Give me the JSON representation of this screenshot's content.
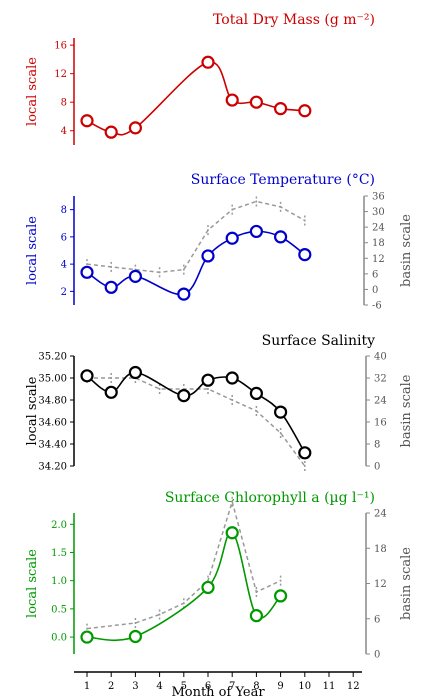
{
  "chart_data": [
    {
      "type": "line",
      "title": "Total Dry Mass (g m⁻²)",
      "ylabel_left": "local scale",
      "color": "#cc0000",
      "ylim_left": [
        2,
        17
      ],
      "yticks_left": [
        "4",
        "8",
        "12",
        "16"
      ],
      "series": [
        {
          "x": [
            1,
            2,
            3,
            6,
            7,
            8,
            9,
            10
          ],
          "values": [
            5.4,
            3.8,
            4.4,
            13.6,
            8.3,
            8.0,
            7.1,
            6.8
          ]
        }
      ]
    },
    {
      "type": "line",
      "title": "Surface Temperature (°C)",
      "ylabel_left": "local scale",
      "ylabel_right": "basin scale",
      "color": "#0000cc",
      "ylim_left": [
        1,
        9
      ],
      "ylim_right": [
        -6,
        36
      ],
      "yticks_left": [
        "2",
        "4",
        "6",
        "8"
      ],
      "yticks_right": [
        "-6",
        "0",
        "6",
        "12",
        "18",
        "24",
        "30",
        "36"
      ],
      "series": [
        {
          "x": [
            1,
            2,
            3,
            5,
            6,
            7,
            8,
            9,
            10
          ],
          "values": [
            3.4,
            2.3,
            3.1,
            1.8,
            4.6,
            5.9,
            6.4,
            6.0,
            4.7
          ]
        }
      ],
      "basin_series": {
        "x": [
          1,
          2,
          3,
          4,
          5,
          6,
          7,
          8,
          9,
          10
        ],
        "values": [
          4.0,
          3.8,
          3.6,
          3.4,
          3.6,
          6.5,
          8.0,
          8.6,
          8.2,
          7.2
        ]
      }
    },
    {
      "type": "line",
      "title": "Surface Salinity",
      "ylabel_left": "local scale",
      "ylabel_right": "basin scale",
      "color": "#000000",
      "ylim_left": [
        34.2,
        35.2
      ],
      "ylim_right": [
        0,
        40
      ],
      "yticks_left": [
        "34.20",
        "34.40",
        "34.60",
        "34.80",
        "35.00",
        "35.20"
      ],
      "yticks_right": [
        "0",
        "8",
        "16",
        "24",
        "32",
        "40"
      ],
      "series": [
        {
          "x": [
            1,
            2,
            3,
            5,
            6,
            7,
            8,
            9,
            10
          ],
          "values": [
            35.02,
            34.87,
            35.05,
            34.84,
            34.98,
            35.0,
            34.86,
            34.69,
            34.32
          ]
        }
      ],
      "basin_series": {
        "x": [
          1,
          2,
          3,
          4,
          5,
          6,
          7,
          8,
          9,
          10
        ],
        "values": [
          35.0,
          35.0,
          35.0,
          34.9,
          34.9,
          34.9,
          34.8,
          34.7,
          34.5,
          34.2
        ]
      }
    },
    {
      "type": "line",
      "title": "Surface Chlorophyll a (µg l⁻¹)",
      "ylabel_left": "local scale",
      "ylabel_right": "basin scale",
      "color": "#009900",
      "ylim_left": [
        -0.3,
        2.2
      ],
      "ylim_right": [
        0,
        24
      ],
      "yticks_left": [
        "0.0",
        "0.5",
        "1.0",
        "1.5",
        "2.0"
      ],
      "yticks_right": [
        "0",
        "6",
        "12",
        "18",
        "24"
      ],
      "series": [
        {
          "x": [
            1,
            3,
            6,
            7,
            8,
            9
          ],
          "values": [
            0.0,
            0.01,
            0.88,
            1.85,
            0.38,
            0.73
          ]
        }
      ],
      "basin_series": {
        "x": [
          1,
          3,
          4,
          5,
          6,
          7,
          8,
          9
        ],
        "values": [
          0.15,
          0.25,
          0.4,
          0.6,
          1.0,
          2.4,
          0.8,
          1.0
        ]
      }
    }
  ],
  "xaxis": {
    "label": "Month of Year",
    "ticks": [
      "1",
      "2",
      "3",
      "4",
      "5",
      "6",
      "7",
      "8",
      "9",
      "10",
      "11",
      "12"
    ]
  }
}
